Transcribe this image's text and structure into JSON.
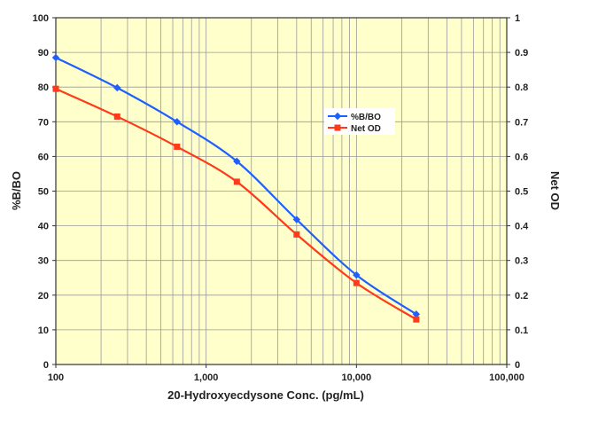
{
  "chart_data": {
    "type": "line",
    "x_scale": "log",
    "xlim": [
      100,
      100000
    ],
    "x_tick_labels": [
      "100",
      "1,000",
      "10,000",
      "100,000"
    ],
    "xlabel": "20-Hydroxyecdysone Conc. (pg/mL)",
    "ylabel_left": "%B/BO",
    "ylabel_right": "Net OD",
    "ylim_left": [
      0,
      100
    ],
    "ylim_right": [
      0,
      1
    ],
    "y_left_tick_labels": [
      "0",
      "10",
      "20",
      "30",
      "40",
      "50",
      "60",
      "70",
      "80",
      "90",
      "100"
    ],
    "y_right_tick_labels": [
      "0",
      "0.1",
      "0.2",
      "0.3",
      "0.4",
      "0.5",
      "0.6",
      "0.7",
      "0.8",
      "0.9",
      "1"
    ],
    "grid": true,
    "legend_position": "center-right",
    "series": [
      {
        "name": "%B/BO",
        "axis": "left",
        "color": "#1f5fff",
        "marker": "diamond",
        "x": [
          100,
          256,
          640,
          1600,
          4000,
          10000,
          25000
        ],
        "y": [
          88.5,
          79.8,
          70.0,
          58.6,
          41.8,
          25.8,
          14.5
        ]
      },
      {
        "name": "Net OD",
        "axis": "right",
        "color": "#ff3a1a",
        "marker": "square",
        "x": [
          100,
          256,
          640,
          1600,
          4000,
          10000,
          25000
        ],
        "y": [
          0.795,
          0.715,
          0.628,
          0.527,
          0.375,
          0.235,
          0.13
        ]
      }
    ],
    "colors": {
      "plot_background": "#ffffcc",
      "grid": "#999999"
    }
  }
}
